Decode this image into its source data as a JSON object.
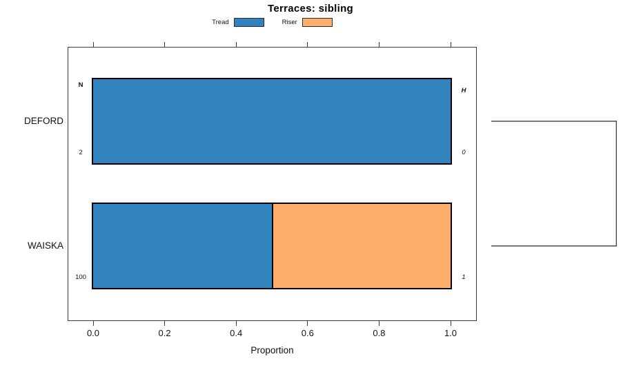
{
  "title": "Terraces: sibling",
  "legend": {
    "items": [
      {
        "label": "Tread",
        "color": "#3182BD"
      },
      {
        "label": "Riser",
        "color": "#FDAE6B"
      }
    ]
  },
  "axis": {
    "xlabel": "Proportion",
    "tick_labels": [
      "0.0",
      "0.2",
      "0.4",
      "0.6",
      "0.8",
      "1.0"
    ]
  },
  "annotations": {
    "left_header": "N",
    "right_header": "H"
  },
  "rows": [
    {
      "label": "DEFORD",
      "n": "2",
      "h": "0"
    },
    {
      "label": "WAISKA",
      "n": "100",
      "h": "1"
    }
  ],
  "chart_data": {
    "type": "bar",
    "orientation": "horizontal",
    "stacked": true,
    "title": "Terraces: sibling",
    "xlabel": "Proportion",
    "xlim": [
      0.0,
      1.0
    ],
    "x_ticks": [
      0.0,
      0.2,
      0.4,
      0.6,
      0.8,
      1.0
    ],
    "categories": [
      "DEFORD",
      "WAISKA"
    ],
    "series": [
      {
        "name": "Tread",
        "color": "#3182BD",
        "values": [
          1.0,
          0.5
        ]
      },
      {
        "name": "Riser",
        "color": "#FDAE6B",
        "values": [
          0.0,
          0.5
        ]
      }
    ],
    "row_counts": {
      "N": [
        2,
        100
      ],
      "H": [
        0,
        1
      ]
    },
    "legend_position": "top",
    "grid": false,
    "right_annotation": "dendrogram bracket joining DEFORD and WAISKA"
  }
}
